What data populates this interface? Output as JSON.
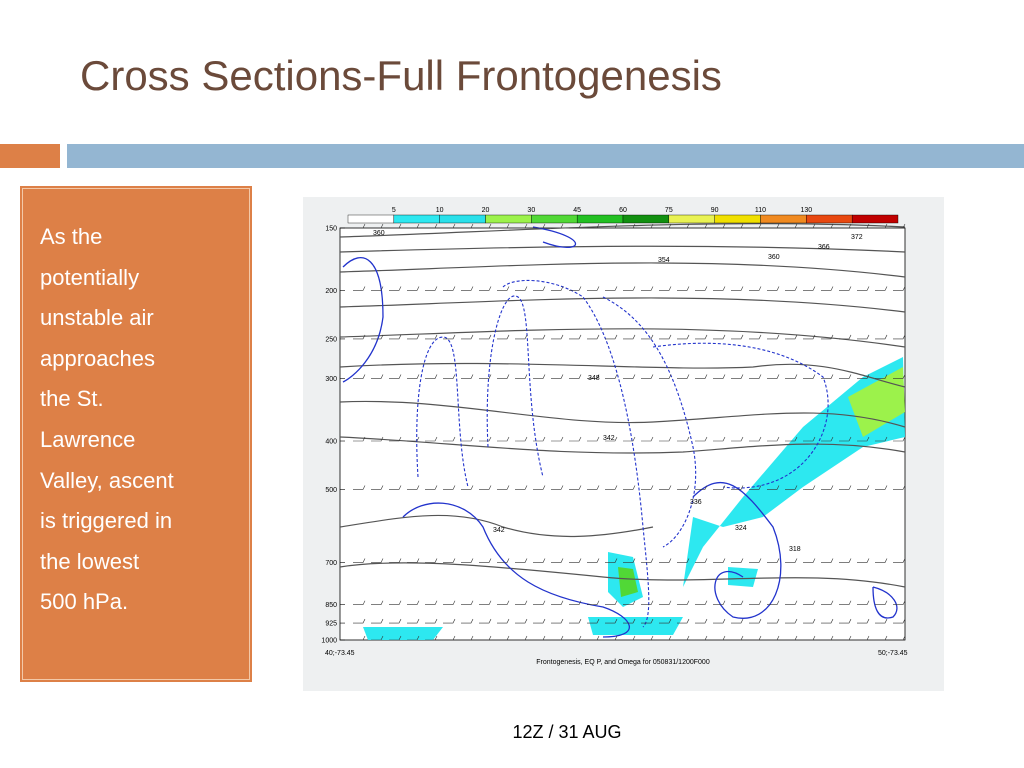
{
  "title": "Cross Sections-Full Frontogenesis",
  "body_lines": [
    "As the",
    "potentially",
    "unstable air",
    "approaches",
    "the St.",
    "Lawrence",
    "Valley, ascent",
    "is triggered in",
    "the lowest",
    "500 hPa."
  ],
  "figure": {
    "colorbar_labels": [
      5,
      10,
      20,
      30,
      45,
      60,
      75,
      90,
      110,
      130
    ],
    "colorbar_colors": [
      "#ffffff",
      "#2de8f0",
      "#29e0ea",
      "#9cf24b",
      "#51d836",
      "#22c022",
      "#119010",
      "#e9f253",
      "#f0e000",
      "#f08a20",
      "#e84810",
      "#c00000"
    ],
    "pressure_levels": [
      150,
      200,
      250,
      300,
      400,
      500,
      700,
      850,
      925,
      1000
    ],
    "pressure_range": [
      150,
      1000
    ],
    "left_label": "40;-73.45",
    "right_label": "50;-73.45",
    "caption": "Frontogenesis, EQ P, and Omega for 050831/1200F000",
    "contour_labels": [
      "360",
      "372",
      "366",
      "360",
      "354",
      "348",
      "342",
      "336",
      "342",
      "324",
      "318"
    ]
  },
  "slide_caption": "12Z / 31 AUG"
}
